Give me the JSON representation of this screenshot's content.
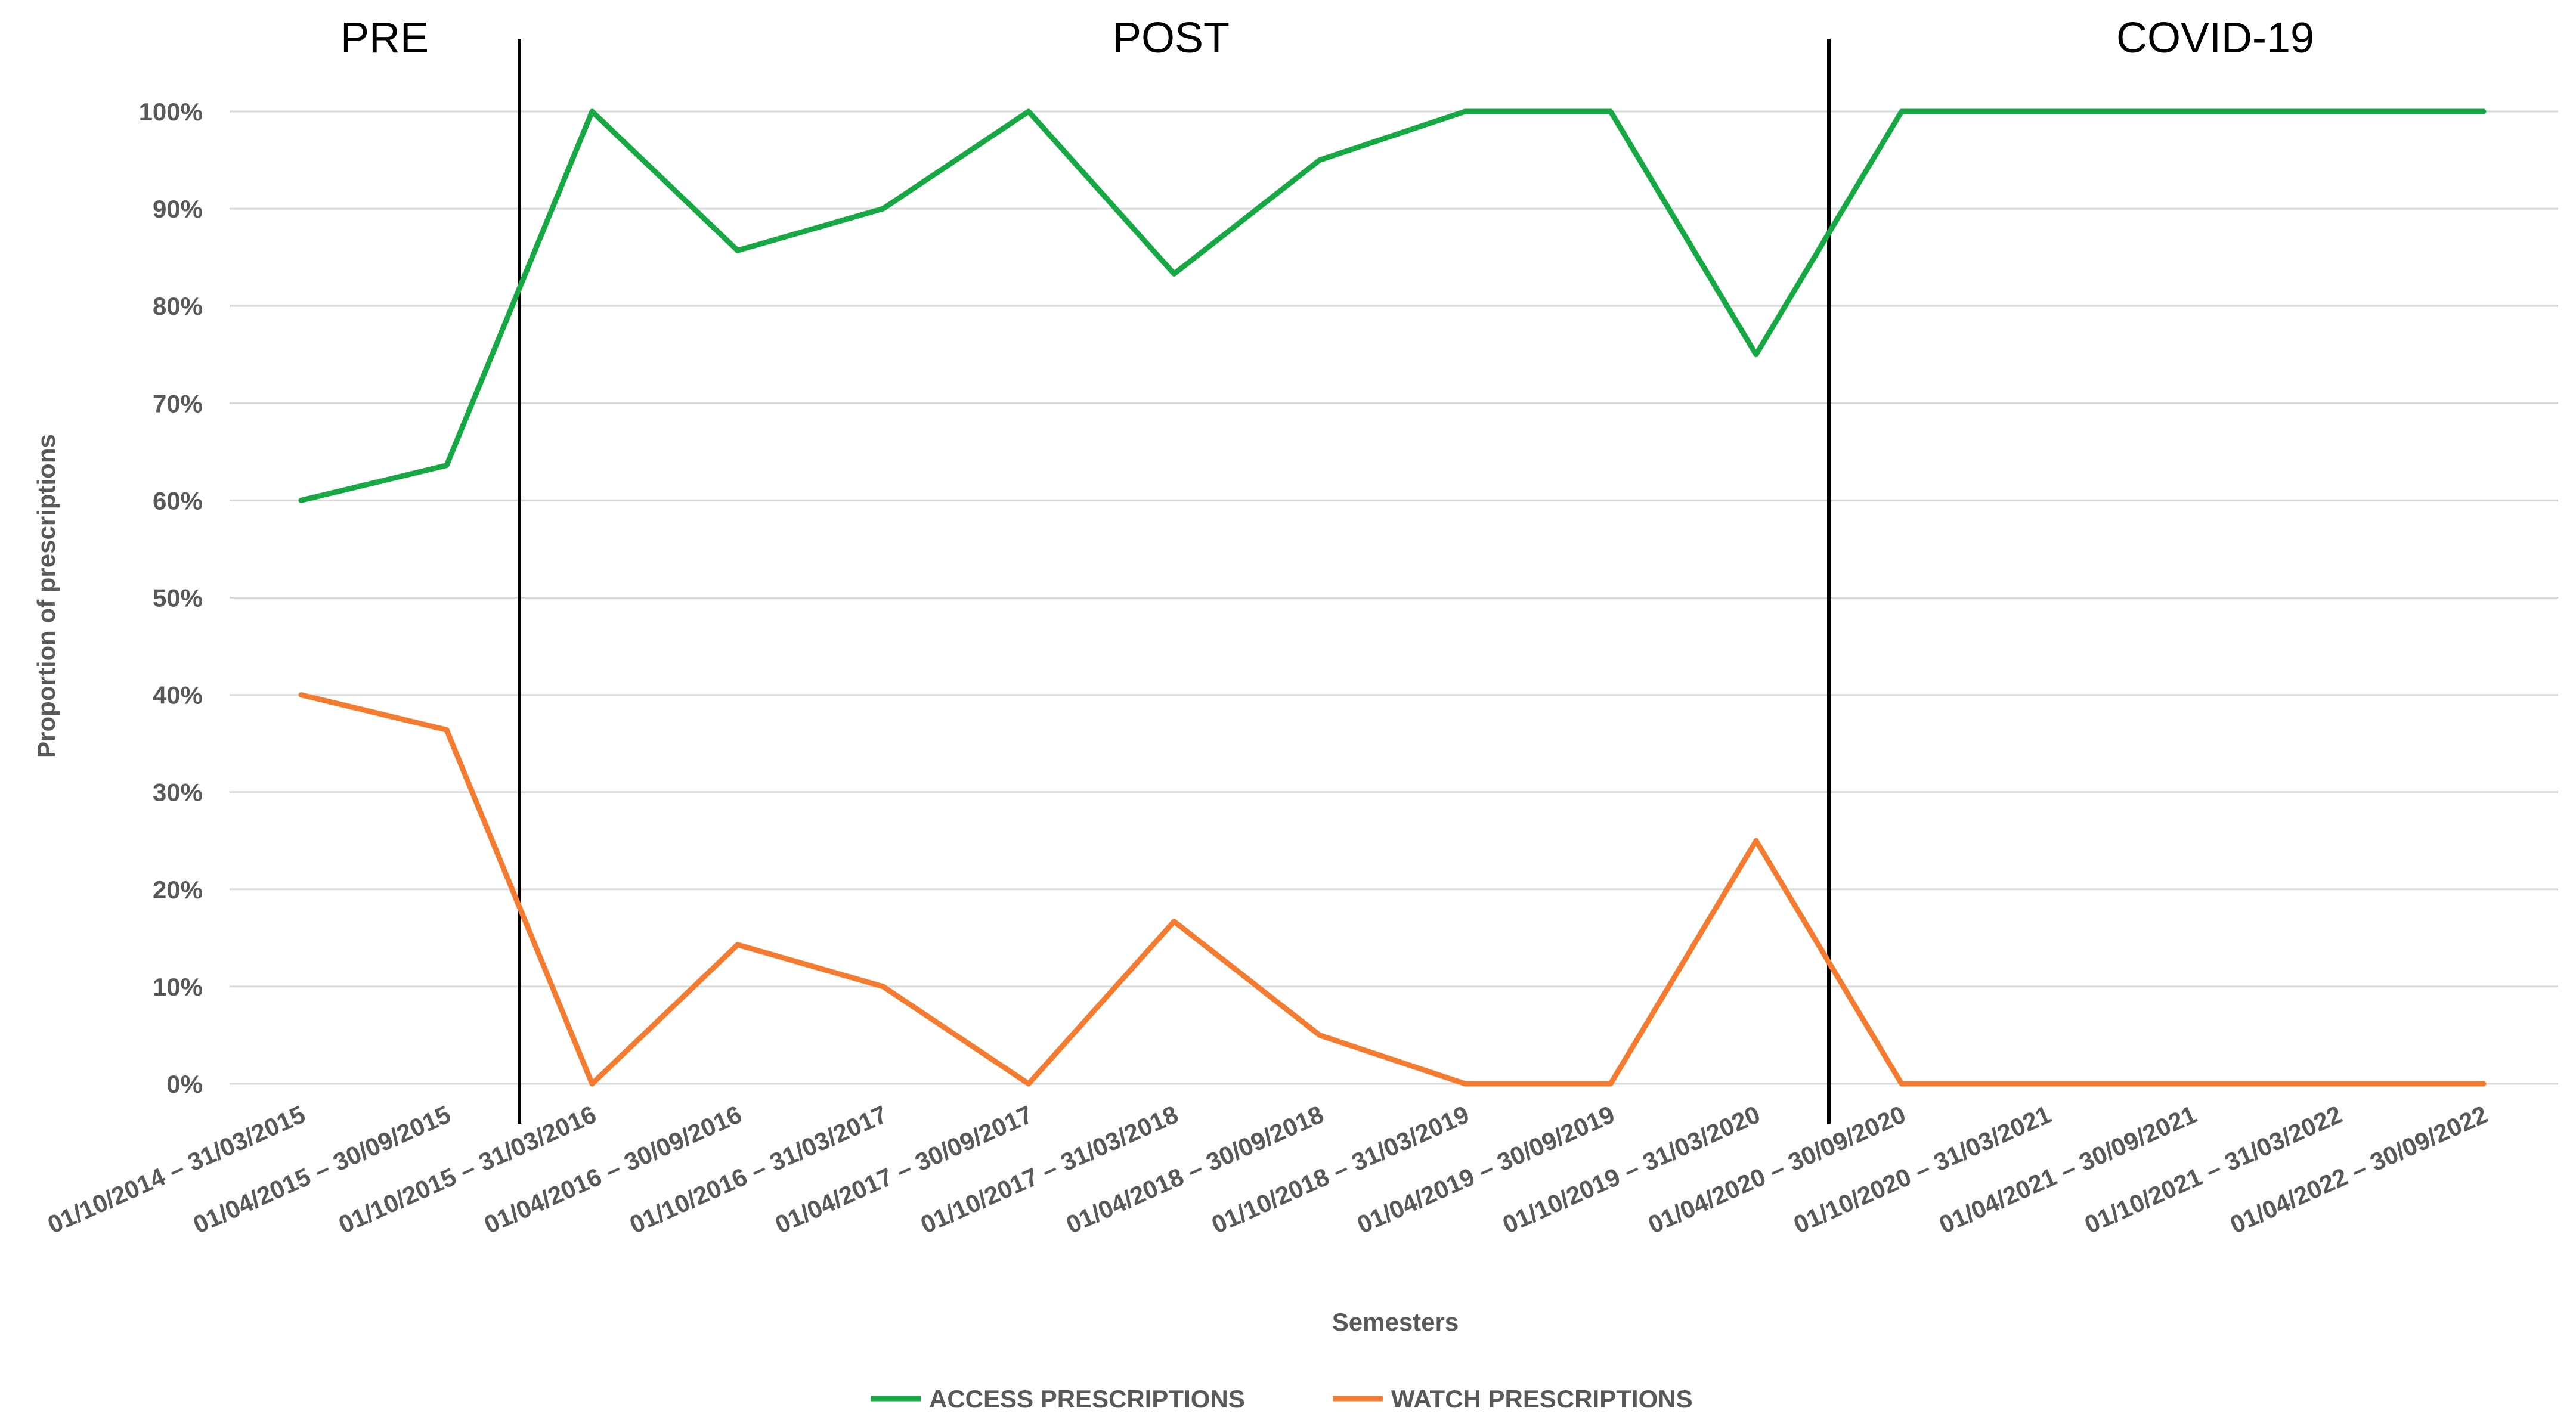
{
  "chart_data": {
    "type": "line",
    "title": "",
    "xlabel": "Semesters",
    "ylabel": "Proportion of prescriptions",
    "ylim": [
      0,
      100
    ],
    "y_ticks": [
      "0%",
      "10%",
      "20%",
      "30%",
      "40%",
      "50%",
      "60%",
      "70%",
      "80%",
      "90%",
      "100%"
    ],
    "grid": true,
    "legend_position": "bottom",
    "categories": [
      "01/10/2014 – 31/03/2015",
      "01/04/2015 – 30/09/2015",
      "01/10/2015 – 31/03/2016",
      "01/04/2016 – 30/09/2016",
      "01/10/2016 – 31/03/2017",
      "01/04/2017 – 30/09/2017",
      "01/10/2017 – 31/03/2018",
      "01/04/2018 – 30/09/2018",
      "01/10/2018 – 31/03/2019",
      "01/04/2019 – 30/09/2019",
      "01/10/2019 – 31/03/2020",
      "01/04/2020 – 30/09/2020",
      "01/10/2020 – 31/03/2021",
      "01/04/2021 – 30/09/2021",
      "01/10/2021 – 31/03/2022",
      "01/04/2022 – 30/09/2022"
    ],
    "series": [
      {
        "name": "ACCESS PRESCRIPTIONS",
        "color": "#16a843",
        "values": [
          60,
          63.6,
          100,
          85.7,
          90,
          100,
          83.3,
          95,
          100,
          100,
          75,
          100,
          100,
          100,
          100,
          100
        ]
      },
      {
        "name": "WATCH PRESCRIPTIONS",
        "color": "#f47b30",
        "values": [
          40,
          36.4,
          0,
          14.3,
          10,
          0,
          16.7,
          5,
          0,
          0,
          25,
          0,
          0,
          0,
          0,
          0
        ]
      }
    ],
    "period_dividers": [
      {
        "after_category_index": 1,
        "label_left": "PRE"
      },
      {
        "after_category_index": 10
      }
    ],
    "period_labels": [
      "PRE",
      "POST",
      "COVID-19"
    ]
  }
}
